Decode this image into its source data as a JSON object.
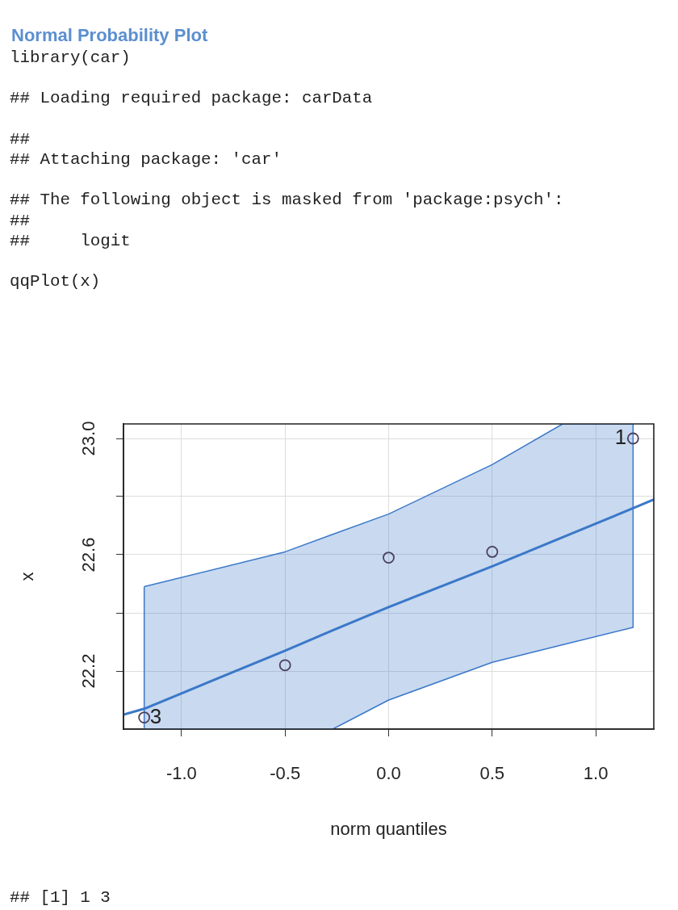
{
  "chart_data": {
    "type": "scatter",
    "title": "Normal Probability Plot",
    "subtitle": "library(car)\n\n## Loading required package: carData\n\n##\n## Attaching package: 'car'\n\n## The following object is masked from 'package:psych':\n##\n##     logit\n\nqqPlot(x)",
    "xlabel": "norm quantiles",
    "ylabel": "x",
    "series": [
      {
        "type": "line",
        "color": "#3a78c8",
        "line_style": "solid",
        "x": [
          -1.28,
          -1.18,
          -0.5,
          -0.27,
          0,
          0.5,
          0.84,
          1.18,
          1.28
        ],
        "values": [
          22.05,
          22.07,
          22.27,
          22.34,
          22.42,
          22.56,
          22.66,
          22.76,
          22.79
        ],
        "lower": [
          null,
          22.0,
          22.0,
          22.0,
          22.1,
          22.23,
          22.29,
          22.35,
          null
        ],
        "upper": [
          null,
          22.49,
          22.61,
          22.67,
          22.74,
          22.91,
          23.05,
          23.05,
          null
        ]
      },
      {
        "color": "#4b4060",
        "marker": "circle",
        "x": [
          -1.18,
          -0.5,
          0,
          0.5,
          1.18
        ],
        "values": [
          22.04,
          22.22,
          22.59,
          22.61,
          23.0
        ]
      }
    ],
    "xlim": [
      -1.28,
      1.28
    ],
    "ylim": [
      22.0,
      23.05
    ],
    "xticks": [
      {
        "value": -1,
        "label": "-1.0"
      },
      -0.5,
      {
        "value": 0,
        "label": "0.0"
      },
      0.5,
      {
        "value": 1,
        "label": "1.0"
      }
    ],
    "yticks": [
      22.2,
      {
        "value": 22.4,
        "label": null
      },
      22.6,
      {
        "value": 22.8,
        "label": null
      },
      {
        "value": 23,
        "label": "23.0"
      }
    ],
    "grid": true,
    "legend": false,
    "annotations": [
      {
        "text": "1",
        "x": 1.18,
        "y": 23.0
      },
      {
        "text": "3",
        "x": -1.18,
        "y": 22.04
      },
      "## [1] 1 3"
    ]
  }
}
